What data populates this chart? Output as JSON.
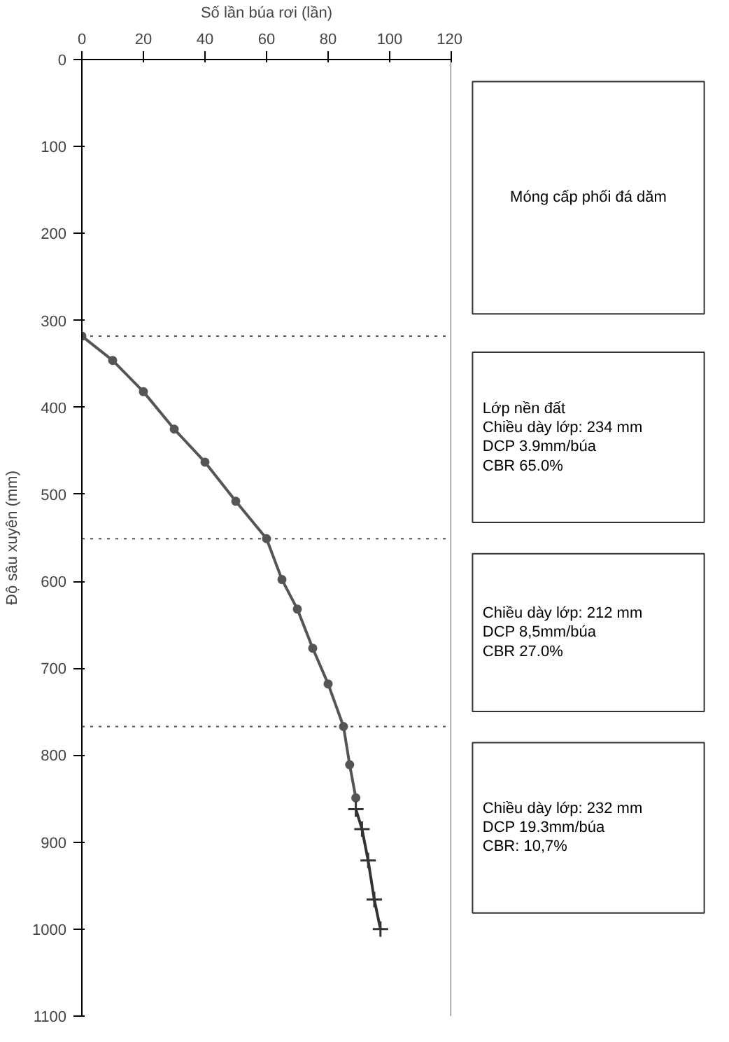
{
  "chart_data": {
    "type": "line",
    "xlabel": "Số lần búa rơi (lần)",
    "ylabel": "Độ sâu xuyên (mm)",
    "xlim": [
      0,
      120
    ],
    "xticks": [
      0,
      20,
      40,
      60,
      80,
      100,
      120
    ],
    "ylim": [
      1100,
      0
    ],
    "yticks": [
      0,
      100,
      200,
      300,
      400,
      500,
      600,
      700,
      800,
      900,
      1000,
      1100
    ],
    "grid": false,
    "line_style": "solid",
    "series": [
      {
        "color": "#555555",
        "marker": "circle",
        "x": [
          0,
          10,
          20,
          30,
          40,
          50,
          60,
          65,
          70,
          75,
          80,
          85,
          87,
          89
        ],
        "values": [
          318,
          346,
          382,
          425,
          463,
          508,
          551,
          598,
          632,
          677,
          718,
          767,
          811,
          849
        ]
      },
      {
        "color": "#333333",
        "marker": "cross",
        "x": [
          89,
          91,
          93,
          95,
          97
        ],
        "values": [
          862,
          885,
          921,
          966,
          1000
        ]
      }
    ],
    "ref_lines": [
      {
        "axis": "y",
        "value": 318,
        "line_style": "dotted",
        "color": "#555555"
      },
      {
        "axis": "y",
        "value": 551,
        "line_style": "dotted",
        "color": "#555555"
      },
      {
        "axis": "y",
        "value": 767,
        "line_style": "dotted",
        "color": "#555555"
      },
      {
        "axis": "x",
        "value": 120,
        "line_style": "solid",
        "color": "#555555"
      }
    ],
    "annotations": [
      "Móng cấp phối đá dăm",
      "Lớp nền đất\nChiều dày lớp: 234 mm\nDCP 3.9mm/búa\nCBR 65.0%",
      "Chiều dày lớp: 212 mm\nDCP 8,5mm/búa\nCBR 27.0%",
      "Chiều dày lớp: 232 mm\nDCP 19.3mm/búa\nCBR: 10,7%"
    ]
  }
}
